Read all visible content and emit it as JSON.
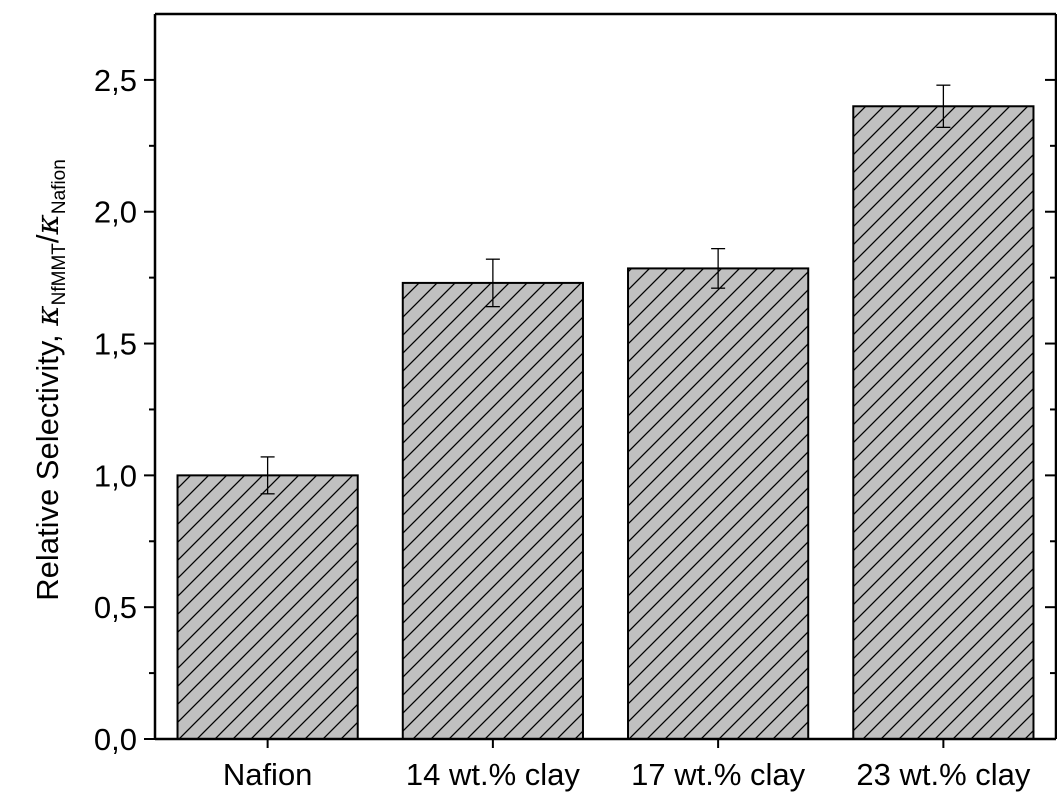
{
  "chart_data": {
    "type": "bar",
    "categories": [
      "Nafion",
      "14 wt.% clay",
      "17 wt.% clay",
      "23 wt.% clay"
    ],
    "values": [
      1.0,
      1.73,
      1.785,
      2.4
    ],
    "errors": [
      0.07,
      0.09,
      0.075,
      0.08
    ],
    "ylim": [
      0,
      2.75
    ],
    "yticks": [
      {
        "value": 0.0,
        "label": "0,0"
      },
      {
        "value": 0.5,
        "label": "0,5"
      },
      {
        "value": 1.0,
        "label": "1,0"
      },
      {
        "value": 1.5,
        "label": "1,5"
      },
      {
        "value": 2.0,
        "label": "2,0"
      },
      {
        "value": 2.5,
        "label": "2,5"
      }
    ],
    "yminor_step": 0.25,
    "ylabel": {
      "prefix": "Relative Selectivity, ",
      "symbol": "κ",
      "sub1": "NfMMT",
      "slash": "/",
      "sub2": "Nafion"
    },
    "xlabel": "",
    "bar_fill": "#c0c0c0",
    "bar_pattern": "diagonal-hatch",
    "grid": false,
    "legend": "none"
  }
}
